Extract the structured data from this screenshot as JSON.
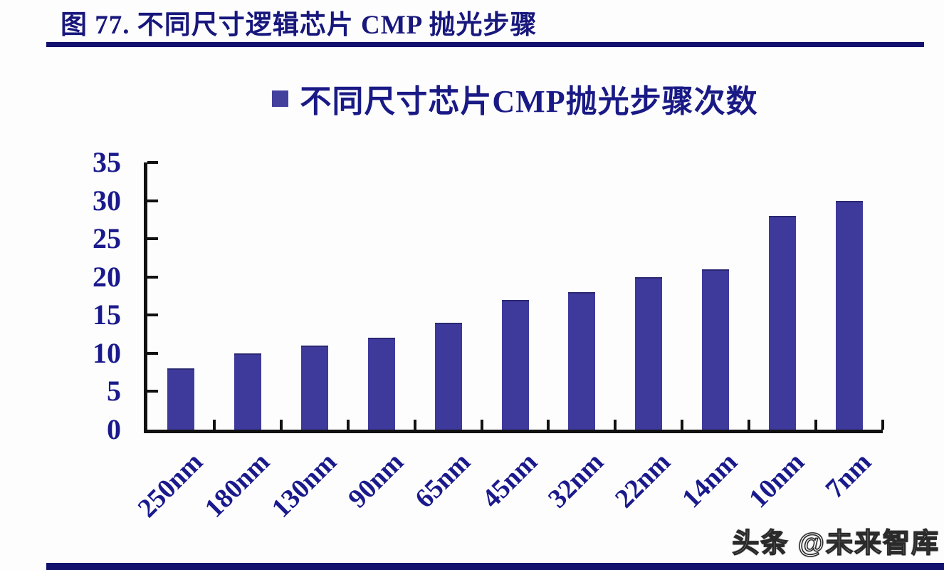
{
  "header": {
    "title": "图 77. 不同尺寸逻辑芯片 CMP 抛光步骤"
  },
  "legend": {
    "label": "不同尺寸芯片CMP抛光步骤次数",
    "marker_color": "#44409e",
    "marker_icon": "square-icon"
  },
  "chart_data": {
    "type": "bar",
    "title": "不同尺寸芯片CMP抛光步骤次数",
    "categories": [
      "250nm",
      "180nm",
      "130nm",
      "90nm",
      "65nm",
      "45nm",
      "32nm",
      "22nm",
      "14nm",
      "10nm",
      "7nm"
    ],
    "values": [
      8,
      10,
      11,
      12,
      14,
      17,
      18,
      20,
      21,
      28,
      30
    ],
    "series": [
      {
        "name": "不同尺寸芯片CMP抛光步骤次数",
        "values": [
          8,
          10,
          11,
          12,
          14,
          17,
          18,
          20,
          21,
          28,
          30
        ]
      }
    ],
    "xlabel": "",
    "ylabel": "",
    "ylim": [
      0,
      35
    ],
    "yticks": [
      0,
      5,
      10,
      15,
      20,
      25,
      30,
      35
    ],
    "grid": false,
    "legend_position": "top-center",
    "bar_color": "#3e3a9c",
    "axis_color": "#111111",
    "tick_label_color": "#1a1a8c",
    "x_label_rotation_deg": 45
  },
  "watermark": {
    "text": "头条 @未来智库"
  },
  "colors": {
    "accent_navy": "#12126e",
    "text_navy": "#1a1a8c",
    "bar_fill": "#3e3a9c",
    "background": "#fdfdfe"
  }
}
